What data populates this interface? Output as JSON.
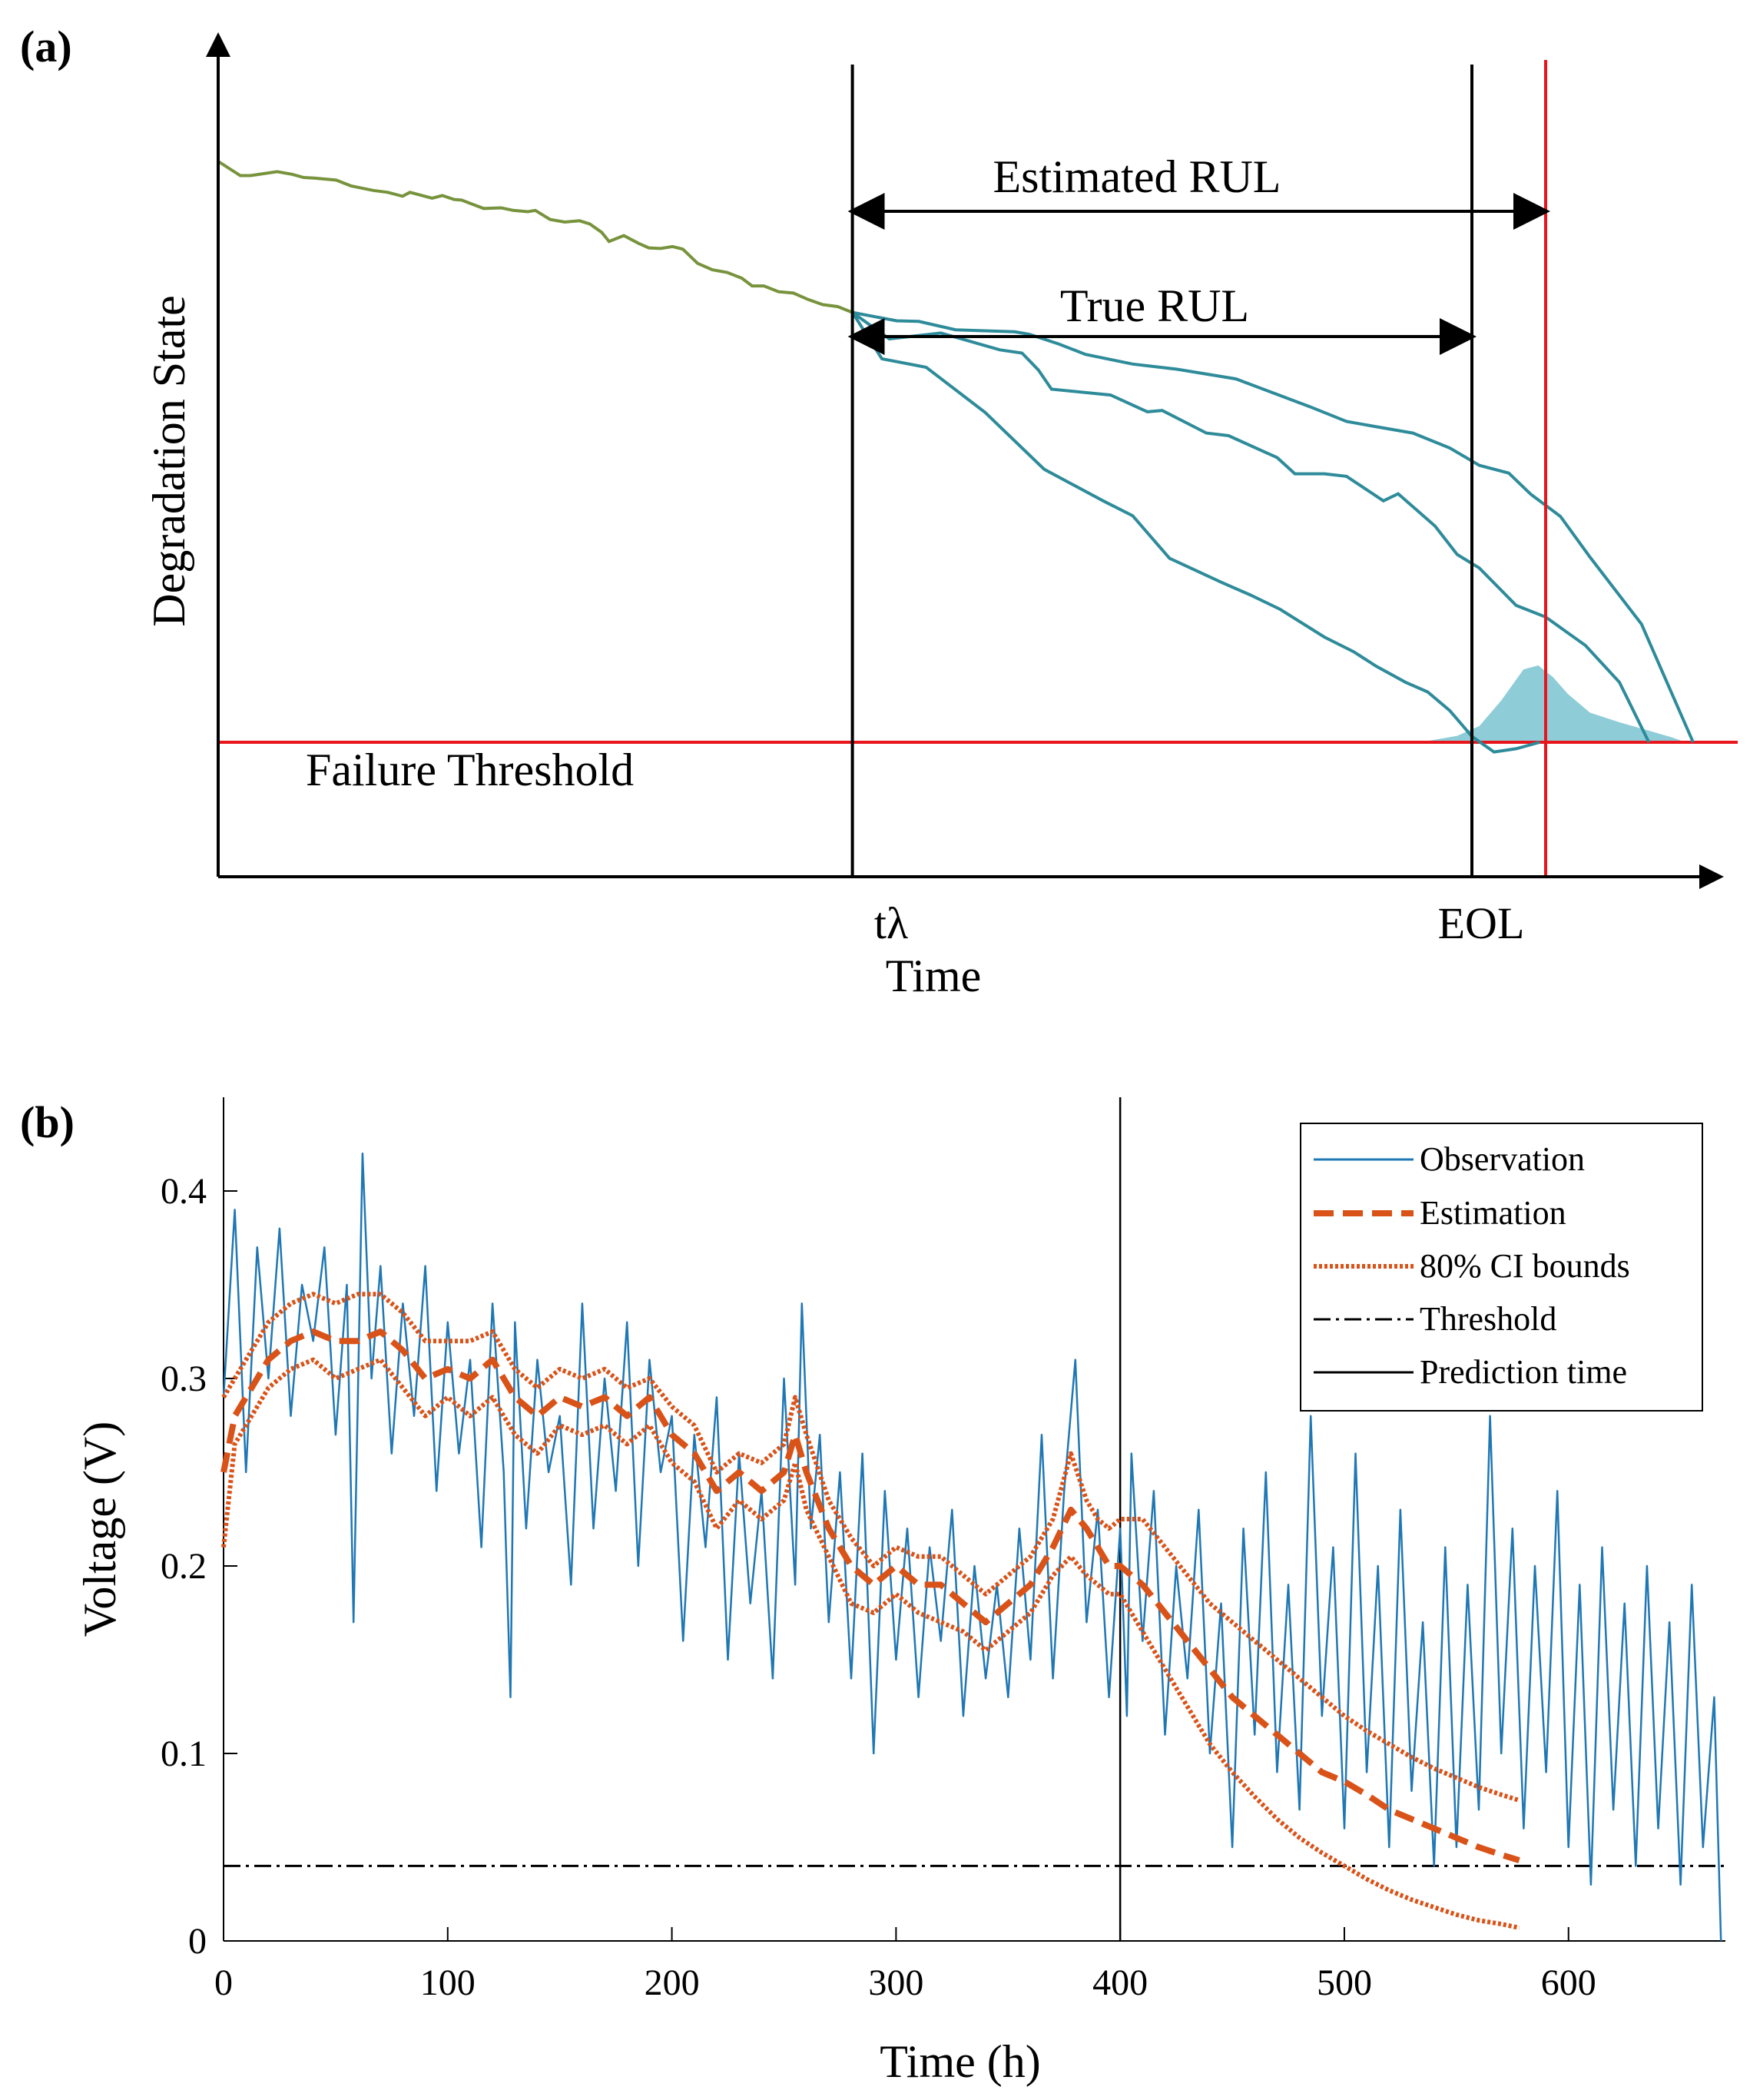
{
  "colors": {
    "axis": "#000000",
    "stage_history": "#77933C",
    "trajectory": "#2E8B9A",
    "pdf_fill": "#8ECDD8",
    "threshold_red": "#E8151B",
    "observation": "#1F77B4",
    "estimation": "#D95319",
    "threshold": "#000000"
  },
  "chart_data": [
    {
      "type": "line",
      "panel_label": "(a)",
      "title": "",
      "ylabel": "Degradation State",
      "xlabel": "Time",
      "tick_labels": {
        "prediction_time": "tλ",
        "eol": "EOL"
      },
      "threshold_label": "Failure Threshold",
      "annotations": {
        "estimated_rul": "Estimated RUL",
        "true_rul": "True RUL"
      },
      "xlim": [
        0,
        100
      ],
      "ylim": [
        0,
        100
      ],
      "prediction_time": 43,
      "eol_time": 85,
      "estimated_eol_time": 90,
      "threshold": 10,
      "series": [
        {
          "name": "history",
          "x": [
            0,
            1.5,
            2.2,
            4,
            5,
            5.8,
            6.5,
            8,
            9,
            10.5,
            11.5,
            12.5,
            13,
            14.5,
            15.2,
            16,
            16.5,
            17.3,
            18,
            19.2,
            20,
            21,
            21.5,
            22.5,
            23.5,
            24.5,
            25.2,
            26,
            26.5,
            27.5,
            28.5,
            29.2,
            30,
            30.8,
            31.5,
            32.5,
            33.5,
            34.5,
            35.5,
            36.2,
            37,
            38,
            39,
            40,
            41,
            42,
            43
          ],
          "y": [
            100,
            97.8,
            97.8,
            98.4,
            98,
            97.5,
            97.4,
            97.1,
            96.2,
            95.5,
            95.2,
            94.6,
            95.2,
            94.3,
            94.7,
            94.1,
            94,
            93.3,
            92.7,
            92.8,
            92.4,
            92.2,
            92.4,
            91,
            90.6,
            90.8,
            90.3,
            89,
            87.6,
            88.5,
            87.3,
            86.6,
            86.5,
            86.8,
            86.4,
            84.2,
            83.2,
            82.8,
            81.9,
            80.7,
            80.7,
            79.8,
            79.6,
            78.6,
            77.8,
            77.5,
            76.6
          ]
        },
        {
          "name": "trajectory-upper",
          "x": [
            43,
            46,
            47.5,
            50,
            54,
            55,
            57,
            58.8,
            62,
            65,
            69,
            74,
            76.5,
            78,
            81,
            83.5,
            85.5,
            87.5,
            89,
            91,
            93,
            96.5,
            100
          ],
          "y": [
            76.6,
            75.3,
            75.2,
            73.9,
            73.6,
            73.2,
            71.7,
            70.1,
            68.6,
            67.8,
            66.3,
            62,
            59.7,
            59.1,
            57.9,
            55.6,
            52.9,
            51.7,
            48.4,
            45,
            38.7,
            28.3,
            10
          ]
        },
        {
          "name": "trajectory-middle",
          "x": [
            43,
            45.5,
            49,
            53,
            54.5,
            55.6,
            56.5,
            60.5,
            63,
            64,
            67,
            68.5,
            71.8,
            73,
            75,
            76.5,
            79,
            80,
            82.5,
            84,
            85.5,
            88,
            90,
            92.7,
            95,
            97
          ],
          "y": [
            76.6,
            72.5,
            73.4,
            70.8,
            70.3,
            67.7,
            64.7,
            63.8,
            61.2,
            61.4,
            57.9,
            57.5,
            54.1,
            51.6,
            51.6,
            51.2,
            47.4,
            48.5,
            43.5,
            39.1,
            37,
            31.2,
            29.4,
            25,
            19.3,
            10
          ]
        },
        {
          "name": "trajectory-lower",
          "x": [
            43,
            45,
            48,
            52,
            56,
            60,
            62,
            64.5,
            68,
            70,
            72,
            75,
            77,
            78.5,
            80.5,
            82,
            83.5,
            85,
            86.5,
            88,
            89.6
          ],
          "y": [
            76.6,
            69.4,
            68.1,
            61.1,
            52.3,
            47.4,
            45.1,
            38.5,
            34.8,
            32.8,
            30.6,
            26.3,
            24,
            21.8,
            19.3,
            17.8,
            14.9,
            10.9,
            8.5,
            9,
            10
          ]
        }
      ],
      "pdf": {
        "x": [
          81.5,
          84,
          85.5,
          87,
          88.5,
          89.5,
          90.5,
          91.5,
          93,
          95,
          97,
          98.5,
          99.5
        ],
        "y": [
          10,
          11,
          12.5,
          16.5,
          21.3,
          21.9,
          20.1,
          17.5,
          14.6,
          13.1,
          11.8,
          10.8,
          10
        ]
      }
    },
    {
      "type": "line",
      "panel_label": "(b)",
      "title": "",
      "xlabel": "Time (h)",
      "ylabel": "Voltage (V)",
      "xlim": [
        0,
        670
      ],
      "ylim": [
        0,
        0.45
      ],
      "xticks": [
        0,
        100,
        200,
        300,
        400,
        500,
        600
      ],
      "xtick_labels": [
        "0",
        "100",
        "200",
        "300",
        "400",
        "500",
        "600"
      ],
      "yticks": [
        0,
        0.1,
        0.2,
        0.3,
        0.4
      ],
      "ytick_labels": [
        "0",
        "0.1",
        "0.2",
        "0.3",
        "0.4"
      ],
      "threshold": 0.04,
      "prediction_time": 400,
      "legend": {
        "position": "top-right",
        "entries": [
          "Observation",
          "Estimation",
          "80% CI bounds",
          "Threshold",
          "Prediction time"
        ]
      },
      "series": [
        {
          "name": "Observation",
          "style": "solid",
          "x": [
            0,
            5,
            10,
            15,
            20,
            25,
            30,
            35,
            40,
            45,
            50,
            55,
            58,
            62,
            66,
            70,
            75,
            80,
            85,
            90,
            95,
            100,
            105,
            110,
            115,
            120,
            125,
            128,
            130,
            135,
            140,
            145,
            150,
            155,
            160,
            165,
            170,
            175,
            180,
            185,
            190,
            195,
            200,
            205,
            210,
            215,
            220,
            225,
            230,
            235,
            240,
            245,
            250,
            255,
            258,
            262,
            266,
            270,
            275,
            280,
            285,
            290,
            295,
            300,
            305,
            310,
            315,
            320,
            325,
            330,
            335,
            340,
            345,
            350,
            355,
            360,
            365,
            370,
            375,
            380,
            385,
            390,
            395,
            400,
            403,
            405,
            410,
            415,
            420,
            425,
            430,
            435,
            440,
            445,
            450,
            455,
            460,
            465,
            470,
            475,
            480,
            485,
            490,
            495,
            500,
            505,
            510,
            515,
            520,
            525,
            530,
            535,
            540,
            545,
            550,
            555,
            560,
            565,
            570,
            575,
            580,
            585,
            590,
            595,
            600,
            605,
            610,
            615,
            620,
            625,
            630,
            635,
            640,
            645,
            650,
            655,
            660,
            665,
            668
          ],
          "y": [
            0.29,
            0.39,
            0.25,
            0.37,
            0.3,
            0.38,
            0.28,
            0.35,
            0.32,
            0.37,
            0.27,
            0.35,
            0.17,
            0.42,
            0.3,
            0.36,
            0.26,
            0.34,
            0.28,
            0.36,
            0.24,
            0.33,
            0.26,
            0.31,
            0.21,
            0.34,
            0.25,
            0.13,
            0.33,
            0.22,
            0.31,
            0.25,
            0.28,
            0.19,
            0.34,
            0.22,
            0.3,
            0.24,
            0.33,
            0.2,
            0.31,
            0.25,
            0.28,
            0.16,
            0.27,
            0.21,
            0.29,
            0.15,
            0.26,
            0.18,
            0.24,
            0.14,
            0.3,
            0.19,
            0.34,
            0.22,
            0.27,
            0.17,
            0.25,
            0.14,
            0.26,
            0.1,
            0.24,
            0.15,
            0.22,
            0.13,
            0.21,
            0.16,
            0.23,
            0.12,
            0.2,
            0.14,
            0.19,
            0.13,
            0.22,
            0.15,
            0.27,
            0.14,
            0.24,
            0.31,
            0.17,
            0.23,
            0.13,
            0.22,
            0.12,
            0.26,
            0.16,
            0.24,
            0.11,
            0.2,
            0.14,
            0.23,
            0.1,
            0.18,
            0.05,
            0.22,
            0.11,
            0.25,
            0.09,
            0.19,
            0.07,
            0.28,
            0.12,
            0.21,
            0.06,
            0.26,
            0.09,
            0.2,
            0.05,
            0.23,
            0.08,
            0.17,
            0.04,
            0.21,
            0.05,
            0.19,
            0.07,
            0.28,
            0.1,
            0.22,
            0.06,
            0.2,
            0.09,
            0.24,
            0.05,
            0.19,
            0.03,
            0.21,
            0.07,
            0.18,
            0.04,
            0.2,
            0.06,
            0.17,
            0.03,
            0.19,
            0.05,
            0.13,
            0.0
          ]
        },
        {
          "name": "Estimation",
          "style": "dashed",
          "x": [
            0,
            5,
            10,
            15,
            20,
            25,
            30,
            40,
            50,
            60,
            70,
            80,
            90,
            100,
            110,
            120,
            130,
            140,
            150,
            160,
            170,
            180,
            190,
            200,
            210,
            220,
            230,
            240,
            250,
            255,
            260,
            270,
            280,
            290,
            300,
            310,
            320,
            330,
            340,
            350,
            360,
            370,
            378,
            385,
            390,
            395,
            400,
            410,
            420,
            430,
            440,
            450,
            460,
            470,
            480,
            490,
            500,
            510,
            520,
            530,
            540,
            550,
            560,
            570,
            578
          ],
          "y": [
            0.25,
            0.28,
            0.29,
            0.3,
            0.31,
            0.315,
            0.32,
            0.325,
            0.32,
            0.32,
            0.325,
            0.315,
            0.3,
            0.305,
            0.3,
            0.31,
            0.29,
            0.28,
            0.29,
            0.285,
            0.29,
            0.28,
            0.29,
            0.27,
            0.26,
            0.24,
            0.25,
            0.24,
            0.25,
            0.27,
            0.25,
            0.22,
            0.2,
            0.19,
            0.2,
            0.19,
            0.19,
            0.18,
            0.17,
            0.18,
            0.19,
            0.21,
            0.23,
            0.22,
            0.21,
            0.2,
            0.2,
            0.19,
            0.175,
            0.16,
            0.145,
            0.13,
            0.12,
            0.11,
            0.1,
            0.09,
            0.085,
            0.078,
            0.07,
            0.065,
            0.06,
            0.055,
            0.05,
            0.046,
            0.043
          ]
        },
        {
          "name": "CI-upper",
          "style": "dotted",
          "x": [
            0,
            5,
            10,
            15,
            20,
            25,
            30,
            40,
            50,
            60,
            70,
            80,
            90,
            100,
            110,
            120,
            130,
            140,
            150,
            160,
            170,
            180,
            190,
            200,
            210,
            220,
            230,
            240,
            250,
            255,
            260,
            270,
            280,
            290,
            300,
            310,
            320,
            330,
            340,
            350,
            360,
            370,
            378,
            385,
            390,
            395,
            400,
            410,
            420,
            430,
            440,
            450,
            460,
            470,
            480,
            490,
            500,
            510,
            520,
            530,
            540,
            550,
            560,
            570,
            578
          ],
          "y": [
            0.29,
            0.3,
            0.31,
            0.32,
            0.33,
            0.335,
            0.34,
            0.345,
            0.34,
            0.345,
            0.345,
            0.335,
            0.32,
            0.32,
            0.32,
            0.325,
            0.305,
            0.295,
            0.305,
            0.3,
            0.305,
            0.295,
            0.3,
            0.285,
            0.275,
            0.25,
            0.26,
            0.255,
            0.265,
            0.29,
            0.27,
            0.235,
            0.215,
            0.2,
            0.21,
            0.205,
            0.205,
            0.195,
            0.185,
            0.195,
            0.205,
            0.225,
            0.26,
            0.235,
            0.225,
            0.22,
            0.225,
            0.225,
            0.21,
            0.195,
            0.18,
            0.17,
            0.16,
            0.15,
            0.14,
            0.13,
            0.12,
            0.112,
            0.105,
            0.098,
            0.092,
            0.087,
            0.082,
            0.078,
            0.075
          ]
        },
        {
          "name": "CI-lower",
          "style": "dotted",
          "x": [
            0,
            5,
            10,
            15,
            20,
            25,
            30,
            40,
            50,
            60,
            70,
            80,
            90,
            100,
            110,
            120,
            130,
            140,
            150,
            160,
            170,
            180,
            190,
            200,
            210,
            220,
            230,
            240,
            250,
            255,
            260,
            270,
            280,
            290,
            300,
            310,
            320,
            330,
            340,
            350,
            360,
            370,
            378,
            385,
            390,
            395,
            400,
            410,
            420,
            430,
            440,
            450,
            460,
            470,
            480,
            490,
            500,
            510,
            520,
            530,
            540,
            550,
            560,
            570,
            578
          ],
          "y": [
            0.21,
            0.265,
            0.275,
            0.285,
            0.295,
            0.3,
            0.305,
            0.31,
            0.3,
            0.305,
            0.31,
            0.295,
            0.28,
            0.29,
            0.28,
            0.29,
            0.27,
            0.26,
            0.275,
            0.27,
            0.275,
            0.265,
            0.275,
            0.255,
            0.245,
            0.22,
            0.235,
            0.225,
            0.235,
            0.255,
            0.23,
            0.205,
            0.18,
            0.175,
            0.185,
            0.175,
            0.17,
            0.165,
            0.155,
            0.165,
            0.175,
            0.195,
            0.205,
            0.195,
            0.19,
            0.185,
            0.185,
            0.165,
            0.145,
            0.125,
            0.105,
            0.09,
            0.077,
            0.065,
            0.055,
            0.047,
            0.04,
            0.033,
            0.027,
            0.022,
            0.018,
            0.014,
            0.011,
            0.009,
            0.007
          ]
        }
      ]
    }
  ]
}
